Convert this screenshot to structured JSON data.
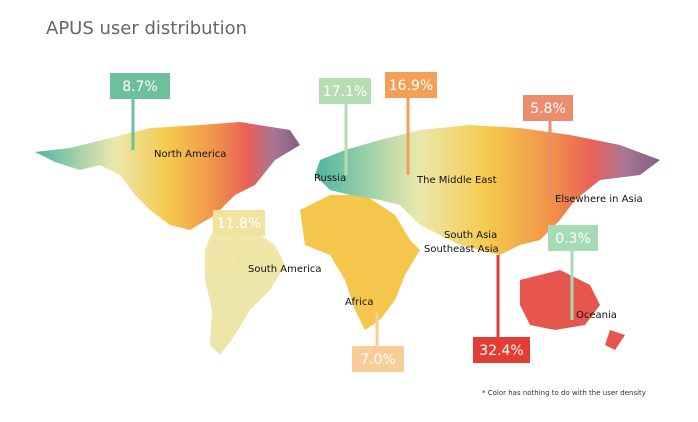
{
  "header": {
    "title": "APUS user distribution"
  },
  "regions": [
    "North America",
    "Russia",
    "The Middle East",
    "Elsewhere in Asia",
    "South America",
    "South Asia",
    "Southeast Asia",
    "Africa",
    "Oceania"
  ],
  "callouts": [
    {
      "share": "8.7%"
    },
    {
      "share": "17.1%"
    },
    {
      "share": "16.9%"
    },
    {
      "share": "5.8%"
    },
    {
      "share": "11.8%"
    },
    {
      "share": "0.3%"
    },
    {
      "share": "32.4%"
    },
    {
      "share": "7.0%"
    }
  ],
  "footnote": "* Color has nothing to do with the user density"
}
